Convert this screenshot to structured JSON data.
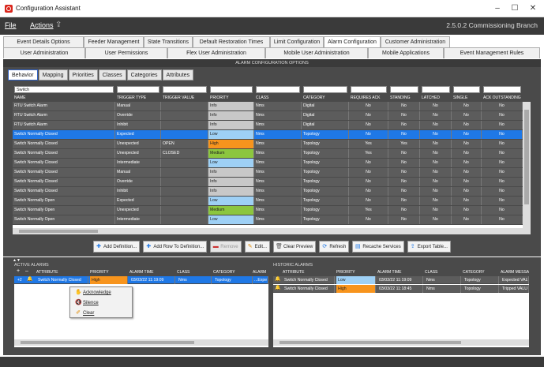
{
  "window": {
    "title": "Configuration Assistant",
    "minimize": "–",
    "maximize": "☐",
    "close": "✕"
  },
  "menu": {
    "file": "File",
    "actions": "Actions",
    "version": "2.5.0.2 Commissioning Branch"
  },
  "tabs_row1": [
    "Event Details Options",
    "Feeder Management",
    "State Transitions",
    "Default Restoration Times",
    "Limit Configuration",
    "Alarm Configuration",
    "Customer Administration"
  ],
  "tabs_row1_active": "Alarm Configuration",
  "tabs_row2": [
    "User Administration",
    "User Permissions",
    "Flex User Administration",
    "Mobile User Administration",
    "Mobile Applications",
    "Event Management Rules"
  ],
  "section_title": "ALARM CONFIGURATION OPTIONS",
  "subtabs": [
    "Behavior",
    "Mapping",
    "Priorities",
    "Classes",
    "Categories",
    "Attributes"
  ],
  "subtabs_active": "Behavior",
  "filter": {
    "name": "Switch"
  },
  "columns": [
    "NAME",
    "TRIGGER TYPE",
    "TRIGGER VALUE",
    "PRIORITY",
    "CLASS",
    "CATEGORY",
    "REQUIRES ACK",
    "STANDING",
    "LATCHED",
    "SINGLE",
    "ACK OUTSTANDING"
  ],
  "priority_colors": {
    "Info": "#c8c8c8",
    "Low": "#9ed0f5",
    "High": "#f7941d",
    "Medium": "#8cc63f"
  },
  "rows": [
    [
      "RTU Switch Alarm",
      "Manual",
      "",
      "Info",
      "Nms",
      "Digital",
      "No",
      "No",
      "No",
      "No",
      "No"
    ],
    [
      "RTU Switch Alarm",
      "Override",
      "",
      "Info",
      "Nms",
      "Digital",
      "No",
      "No",
      "No",
      "No",
      "No"
    ],
    [
      "RTU Switch Alarm",
      "Inhibit",
      "",
      "Info",
      "Nms",
      "Digital",
      "No",
      "No",
      "No",
      "No",
      "No"
    ],
    [
      "Switch Normally Closed",
      "Expected",
      "",
      "Low",
      "Nms",
      "Topology",
      "No",
      "No",
      "No",
      "No",
      "No"
    ],
    [
      "Switch Normally Closed",
      "Unexpected",
      "OPEN",
      "High",
      "Nms",
      "Topology",
      "Yes",
      "Yes",
      "No",
      "No",
      "No"
    ],
    [
      "Switch Normally Closed",
      "Unexpected",
      "CLOSED",
      "Medium",
      "Nms",
      "Topology",
      "Yes",
      "No",
      "No",
      "No",
      "No"
    ],
    [
      "Switch Normally Closed",
      "Intermediate",
      "",
      "Low",
      "Nms",
      "Topology",
      "No",
      "No",
      "No",
      "No",
      "No"
    ],
    [
      "Switch Normally Closed",
      "Manual",
      "",
      "Info",
      "Nms",
      "Topology",
      "No",
      "No",
      "No",
      "No",
      "No"
    ],
    [
      "Switch Normally Closed",
      "Override",
      "",
      "Info",
      "Nms",
      "Topology",
      "No",
      "No",
      "No",
      "No",
      "No"
    ],
    [
      "Switch Normally Closed",
      "Inhibit",
      "",
      "Info",
      "Nms",
      "Topology",
      "No",
      "No",
      "No",
      "No",
      "No"
    ],
    [
      "Switch Normally Open",
      "Expected",
      "",
      "Low",
      "Nms",
      "Topology",
      "No",
      "No",
      "No",
      "No",
      "No"
    ],
    [
      "Switch Normally Open",
      "Unexpected",
      "",
      "Medium",
      "Nms",
      "Topology",
      "Yes",
      "No",
      "No",
      "No",
      "No"
    ],
    [
      "Switch Normally Open",
      "Intermediate",
      "",
      "Low",
      "Nms",
      "Topology",
      "No",
      "No",
      "No",
      "No",
      "No"
    ]
  ],
  "selected_row": 3,
  "toolbar": {
    "add_definition": "Add Definition...",
    "add_row": "Add Row To Definition...",
    "remove": "Remove",
    "edit": "Edit...",
    "clear_preview": "Clear Preview",
    "refresh": "Refresh",
    "recache": "Recache Services",
    "export": "Export Table..."
  },
  "active_alarms": {
    "title": "ACTIVE ALARMS",
    "plus": "+",
    "minus": "–",
    "columns": [
      "ATTRIBUTE",
      "PRIORITY",
      "ALARM TIME",
      "CLASS",
      "CATEGORY",
      "ALARM"
    ],
    "rows": [
      {
        "count": "+2",
        "attribute": "Switch Normally Closed",
        "priority": "High",
        "time": "03/03/22 11:19:09",
        "class": "Nms",
        "category": "Topology",
        "alarm": "...Expe"
      }
    ]
  },
  "context_menu": [
    "Acknowledge",
    "Silence",
    "Clear"
  ],
  "historic_alarms": {
    "title": "HISTORIC ALARMS",
    "columns": [
      "ATTRIBUTE",
      "PRIORITY",
      "ALARM TIME",
      "CLASS",
      "CATEGORY",
      "ALARM MESSA"
    ],
    "rows": [
      {
        "attribute": "Switch Normally Closed",
        "priority": "Low",
        "time": "03/03/22 11:19:09",
        "class": "Nms",
        "category": "Topology",
        "alarm": "Expected VALU"
      },
      {
        "attribute": "Switch Normally Closed",
        "priority": "High",
        "time": "03/03/22 11:18:45",
        "class": "Nms",
        "category": "Topology",
        "alarm": "Tripped VALU"
      }
    ]
  }
}
